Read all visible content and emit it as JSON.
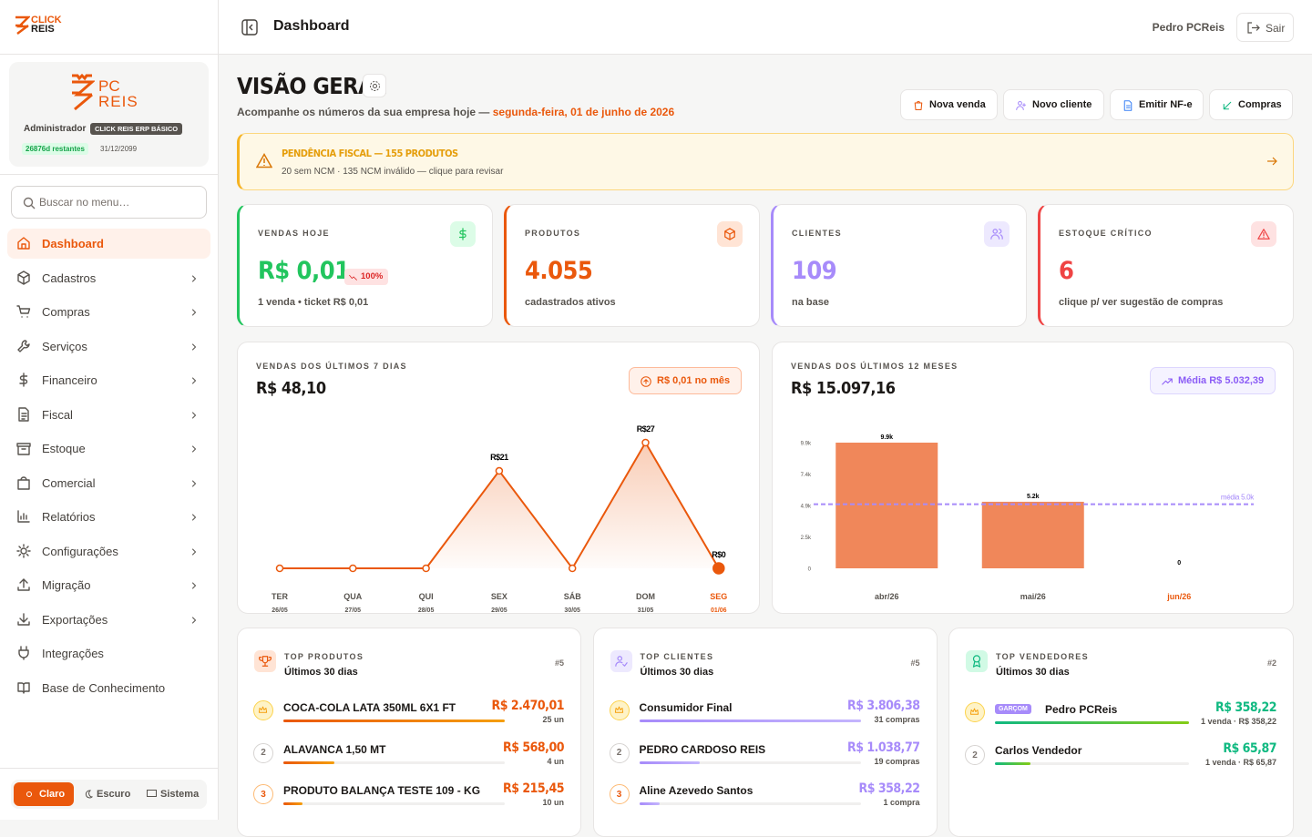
{
  "sidebar": {
    "brand": [
      "CLICK",
      "REIS"
    ],
    "profile": {
      "logo": [
        "PC",
        "REIS"
      ],
      "role": "Administrador",
      "plan": "CLICK REIS ERP BÁSICO",
      "remaining": "26876d restantes",
      "expires": "31/12/2099"
    },
    "search_placeholder": "Buscar no menu…",
    "menu": [
      "Dashboard",
      "Cadastros",
      "Compras",
      "Serviços",
      "Financeiro",
      "Fiscal",
      "Estoque",
      "Comercial",
      "Relatórios",
      "Configurações",
      "Migração",
      "Exportações",
      "Integrações",
      "Base de Conhecimento"
    ],
    "themes": [
      "Claro",
      "Escuro",
      "Sistema"
    ]
  },
  "header": {
    "title": "Dashboard",
    "user": "Pedro PCReis",
    "logout": "Sair"
  },
  "overview": {
    "title": "VISÃO GERAL",
    "subtitle": "Acompanhe os números da sua empresa hoje — ",
    "date": "segunda-feira, 01 de junho de 2026",
    "actions": [
      "Nova venda",
      "Novo cliente",
      "Emitir NF-e",
      "Compras"
    ]
  },
  "alert": {
    "title": "PENDÊNCIA FISCAL — 155 PRODUTOS",
    "detail": "20 sem NCM · 135 NCM inválido — clique para revisar"
  },
  "kpis": [
    {
      "label": "VENDAS HOJE",
      "value": "R$ 0,01",
      "badge": "100%",
      "note": "1 venda • ticket R$ 0,01",
      "color": "#22c55e"
    },
    {
      "label": "PRODUTOS",
      "value": "4.055",
      "note": "cadastrados ativos",
      "color": "#ea580c"
    },
    {
      "label": "CLIENTES",
      "value": "109",
      "note": "na base",
      "color": "#a78bfa"
    },
    {
      "label": "ESTOQUE CRÍTICO",
      "value": "6",
      "note": "clique p/ ver sugestão de compras",
      "color": "#ef4444"
    }
  ],
  "chart_data": [
    {
      "type": "line",
      "title": "VENDAS DOS ÚLTIMOS 7 DIAS",
      "total": "R$ 48,10",
      "badge": "R$ 0,01 no mês",
      "categories": [
        "TER",
        "QUA",
        "QUI",
        "SEX",
        "SÁB",
        "DOM",
        "SEG"
      ],
      "dates": [
        "26/05",
        "27/05",
        "28/05",
        "29/05",
        "30/05",
        "31/05",
        "01/06"
      ],
      "values": [
        0,
        0,
        0,
        21,
        0,
        27.09,
        0.01
      ],
      "value_labels": [
        null,
        null,
        null,
        "R$21",
        null,
        "R$27",
        "R$0"
      ],
      "color": "#ea580c"
    },
    {
      "type": "bar",
      "title": "VENDAS DOS ÚLTIMOS 12 MESES",
      "total": "R$ 15.097,16",
      "badge": "Média R$ 5.032,39",
      "categories": [
        "abr/26",
        "mai/26",
        "jun/26"
      ],
      "values": [
        9870,
        5227.16,
        0
      ],
      "value_labels": [
        "9.9k",
        "5.2k",
        "0"
      ],
      "color": "#f0875a",
      "ylim": [
        0,
        9870
      ],
      "yticks": [
        0,
        {
          "value": 2467.5,
          "label": "2.5k"
        },
        {
          "value": 4935,
          "label": "4.9k"
        },
        {
          "value": 7402.5,
          "label": "7.4k"
        },
        {
          "value": 9870,
          "label": "9.9k"
        }
      ],
      "mean": 5032.39,
      "mean_label": "média 5.0k",
      "mean_color": "#a78bfa"
    }
  ],
  "rankings": [
    {
      "title": "TOP PRODUTOS",
      "period": "Últimos 30 dias",
      "count": "#5",
      "color": "#ea580c",
      "items": [
        {
          "name": "COCA-COLA LATA 350ML 6X1 FT",
          "value": 2470.01,
          "value_label": "R$ 2.470,01",
          "detail": "25 un"
        },
        {
          "rank": "2",
          "name": "ALAVANCA 1,50 MT",
          "value": 568,
          "value_label": "R$ 568,00",
          "detail": "4 un"
        },
        {
          "rank": "3",
          "name": "PRODUTO BALANÇA TESTE 109 - KG",
          "value": 215.45,
          "value_label": "R$ 215,45",
          "detail": "10 un"
        }
      ]
    },
    {
      "title": "TOP CLIENTES",
      "period": "Últimos 30 dias",
      "count": "#5",
      "color": "#a78bfa",
      "items": [
        {
          "name": "Consumidor Final",
          "value": 3806.38,
          "value_label": "R$ 3.806,38",
          "detail": "31 compras"
        },
        {
          "rank": "2",
          "name": "PEDRO CARDOSO REIS",
          "value": 1038.77,
          "value_label": "R$ 1.038,77",
          "detail": "19 compras"
        },
        {
          "rank": "3",
          "name": "Aline Azevedo Santos",
          "value": 358.22,
          "value_label": "R$ 358,22",
          "detail": "1 compra"
        }
      ]
    },
    {
      "title": "TOP VENDEDORES",
      "period": "Últimos 30 dias",
      "count": "#2",
      "color": "#10b981",
      "items": [
        {
          "badge": "GARÇOM",
          "name": "Pedro PCReis",
          "value": 358.22,
          "value_label": "R$ 358,22",
          "detail": "1 venda · R$ 358,22"
        },
        {
          "rank": "2",
          "name": "Carlos Vendedor",
          "value": 65.87,
          "value_label": "R$ 65,87",
          "detail": "1 venda · R$ 65,87"
        }
      ]
    }
  ]
}
